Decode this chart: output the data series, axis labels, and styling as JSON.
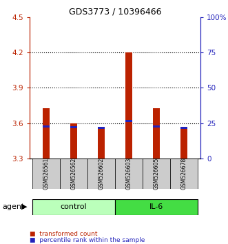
{
  "title": "GDS3773 / 10396466",
  "samples": [
    "GSM526561",
    "GSM526562",
    "GSM526602",
    "GSM526603",
    "GSM526605",
    "GSM526678"
  ],
  "groups": [
    "control",
    "control",
    "control",
    "IL-6",
    "IL-6",
    "IL-6"
  ],
  "red_values": [
    3.73,
    3.6,
    3.555,
    4.2,
    3.73,
    3.555
  ],
  "blue_values": [
    3.565,
    3.555,
    3.552,
    3.61,
    3.565,
    3.552
  ],
  "blue_heights": [
    0.018,
    0.018,
    0.018,
    0.018,
    0.018,
    0.018
  ],
  "baseline": 3.3,
  "ylim": [
    3.3,
    4.5
  ],
  "yticks_left": [
    3.3,
    3.6,
    3.9,
    4.2,
    4.5
  ],
  "yticks_right": [
    0,
    25,
    50,
    75,
    100
  ],
  "yticks_right_labels": [
    "0",
    "25",
    "50",
    "75",
    "100%"
  ],
  "red_color": "#bb2200",
  "blue_color": "#2222bb",
  "sample_box_color": "#cccccc",
  "control_color": "#bbffbb",
  "il6_color": "#44dd44",
  "group_labels": [
    "control",
    "IL-6"
  ],
  "agent_label": "agent",
  "legend_red": "transformed count",
  "legend_blue": "percentile rank within the sample",
  "bar_width": 0.25,
  "fig_width": 3.31,
  "fig_height": 3.54
}
